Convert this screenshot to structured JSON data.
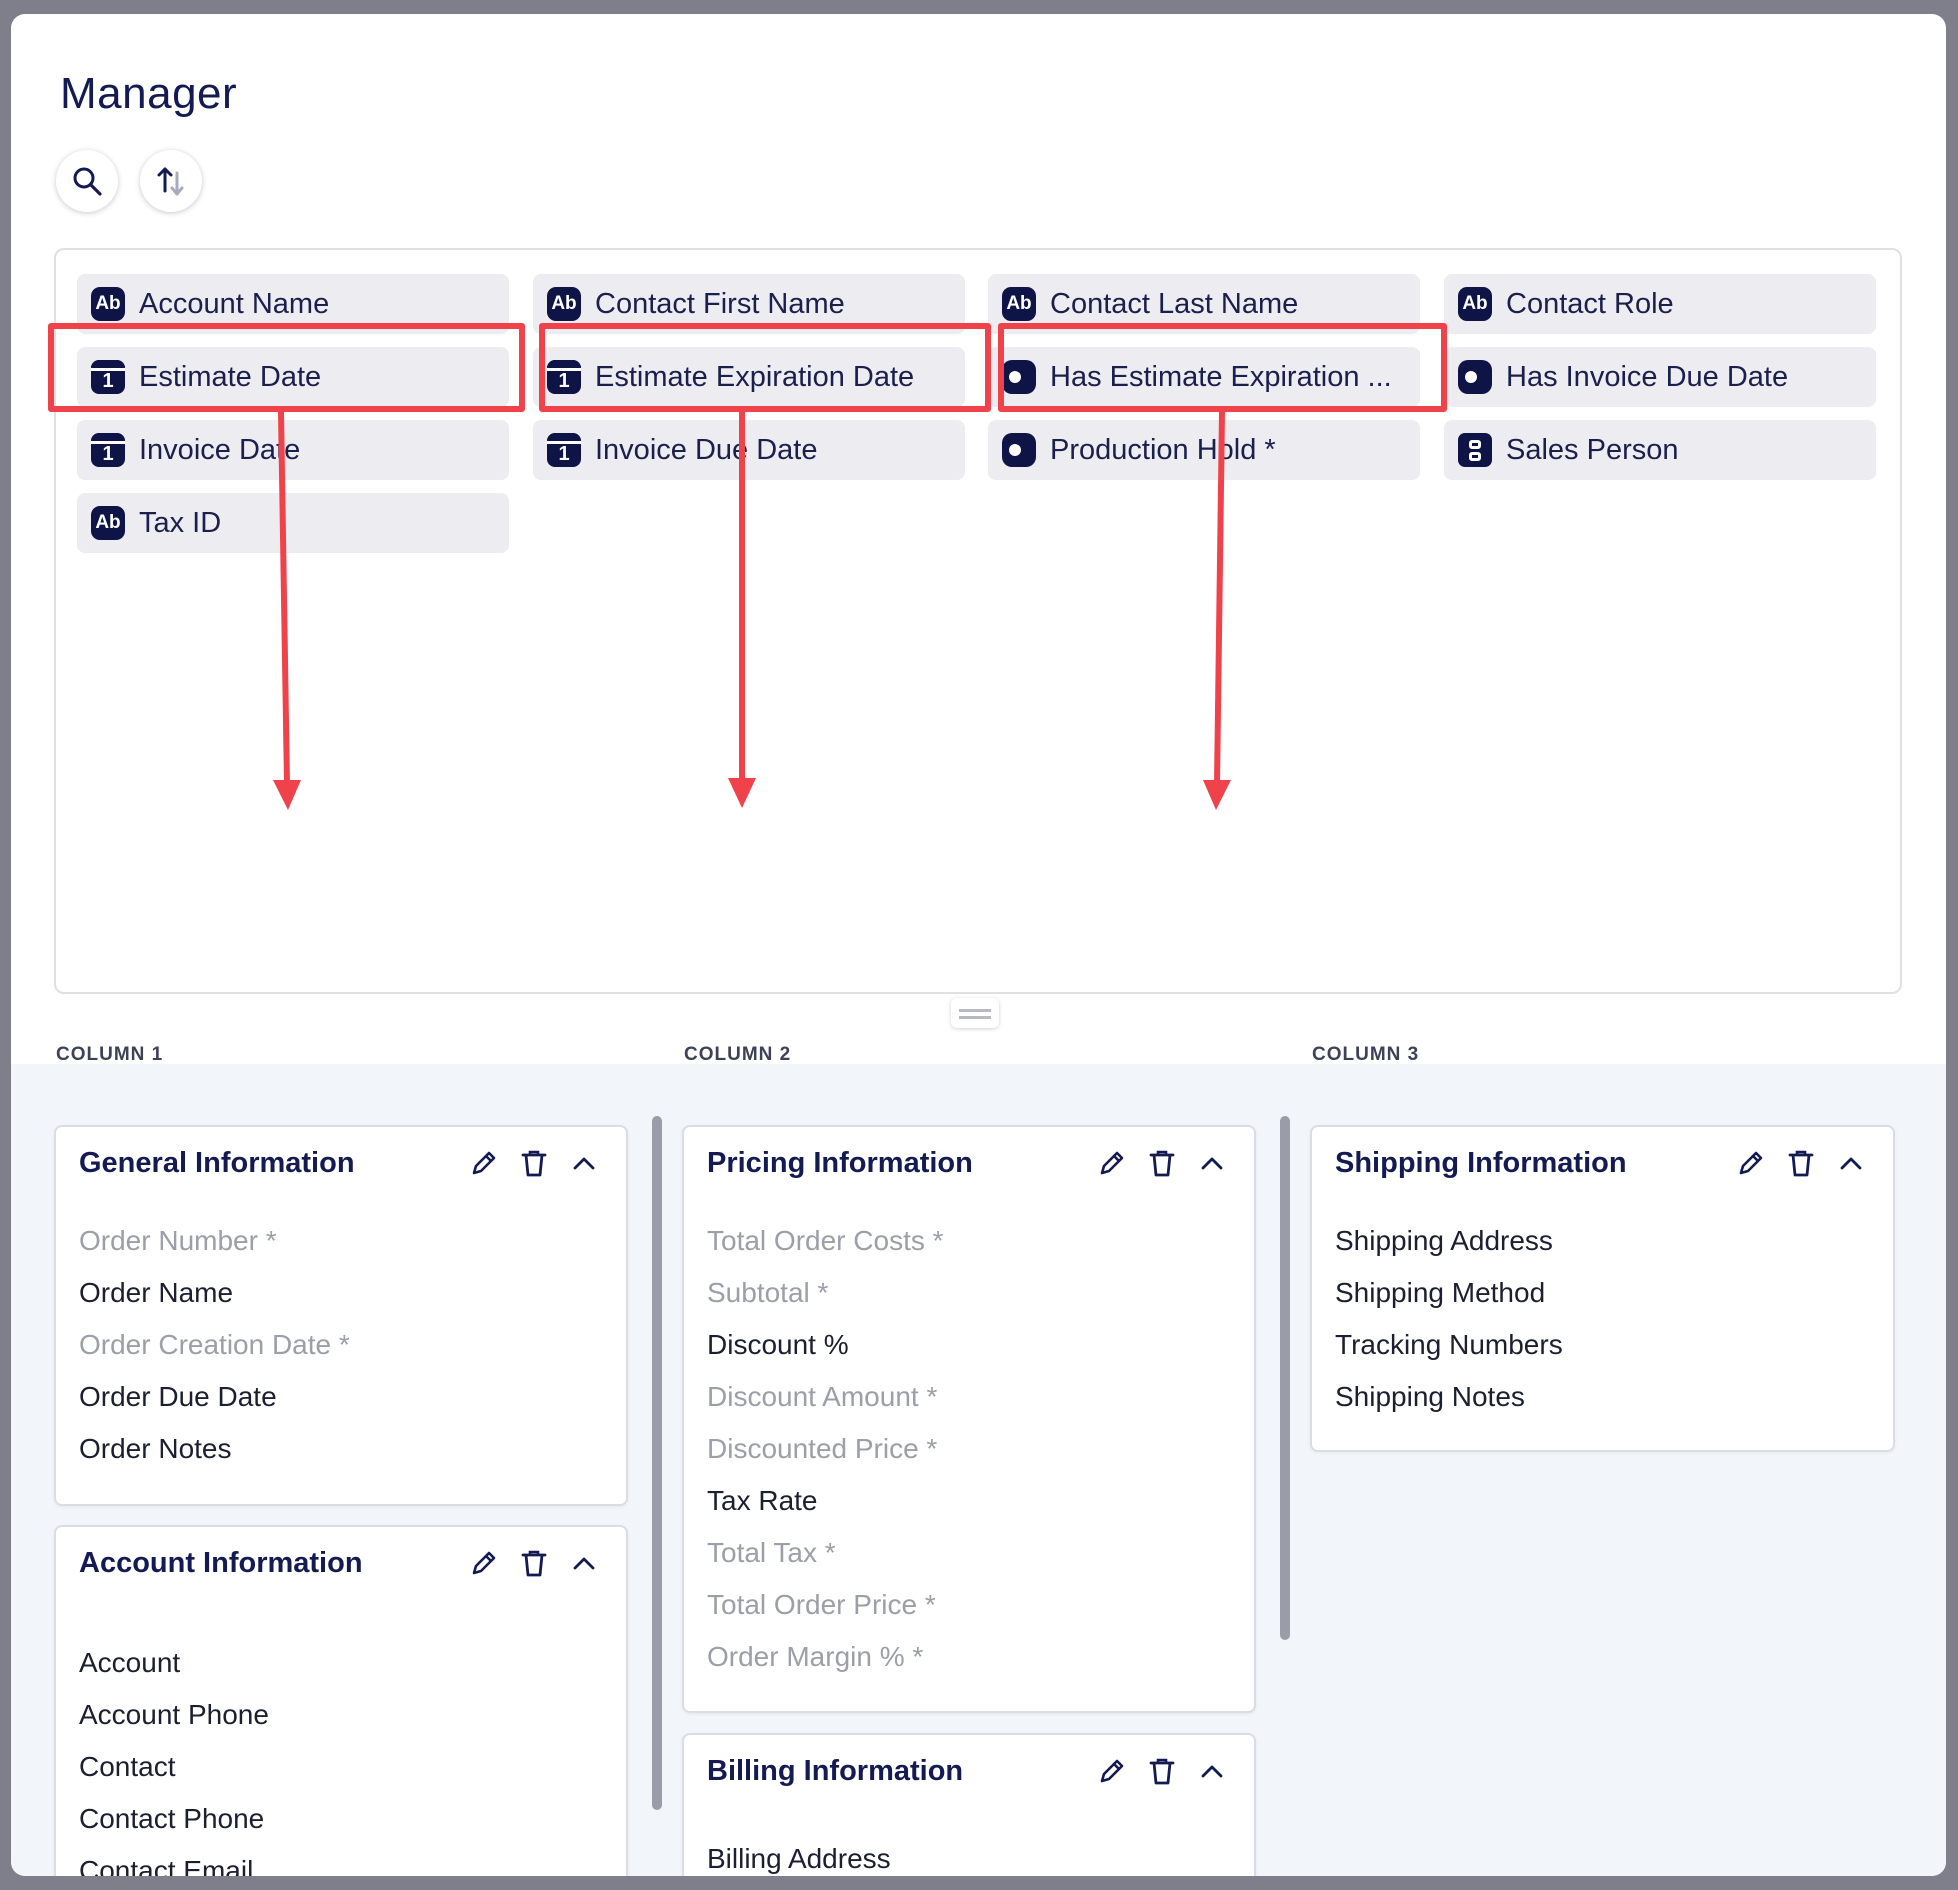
{
  "title": "Manager",
  "fields": [
    {
      "label": "Account Name",
      "type": "text",
      "icon": "text-type-icon"
    },
    {
      "label": "Contact First Name",
      "type": "text",
      "icon": "text-type-icon"
    },
    {
      "label": "Contact Last Name",
      "type": "text",
      "icon": "text-type-icon"
    },
    {
      "label": "Contact Role",
      "type": "text",
      "icon": "text-type-icon"
    },
    {
      "label": "Estimate Date",
      "type": "date",
      "icon": "calendar-icon"
    },
    {
      "label": "Estimate Expiration Date",
      "type": "date",
      "icon": "calendar-icon"
    },
    {
      "label": "Has Estimate Expiration ...",
      "type": "toggle",
      "icon": "toggle-icon"
    },
    {
      "label": "Has Invoice Due Date",
      "type": "toggle",
      "icon": "toggle-icon"
    },
    {
      "label": "Invoice Date",
      "type": "date",
      "icon": "calendar-icon"
    },
    {
      "label": "Invoice Due Date",
      "type": "date",
      "icon": "calendar-icon"
    },
    {
      "label": "Production Hold *",
      "type": "toggle",
      "icon": "toggle-icon"
    },
    {
      "label": "Sales Person",
      "type": "person",
      "icon": "person-icon"
    },
    {
      "label": "Tax ID",
      "type": "text",
      "icon": "text-type-icon"
    }
  ],
  "icon_text": {
    "text": "Ab",
    "date": "1"
  },
  "columns": [
    "COLUMN 1",
    "COLUMN 2",
    "COLUMN 3"
  ],
  "sections": [
    {
      "title": "General Information",
      "items": [
        {
          "label": "Order Number *",
          "dim": true
        },
        {
          "label": "Order Name",
          "dim": false
        },
        {
          "label": "Order Creation Date *",
          "dim": true
        },
        {
          "label": "Order Due Date",
          "dim": false
        },
        {
          "label": "Order Notes",
          "dim": false
        }
      ]
    },
    {
      "title": "Account Information",
      "items": [
        {
          "label": "Account",
          "dim": false
        },
        {
          "label": "Account Phone",
          "dim": false
        },
        {
          "label": "Contact",
          "dim": false
        },
        {
          "label": "Contact Phone",
          "dim": false
        },
        {
          "label": "Contact Email",
          "dim": false
        }
      ]
    },
    {
      "title": "Pricing Information",
      "items": [
        {
          "label": "Total Order Costs *",
          "dim": true
        },
        {
          "label": "Subtotal *",
          "dim": true
        },
        {
          "label": "Discount %",
          "dim": false
        },
        {
          "label": "Discount Amount *",
          "dim": true
        },
        {
          "label": "Discounted Price *",
          "dim": true
        },
        {
          "label": "Tax Rate",
          "dim": false
        },
        {
          "label": "Total Tax *",
          "dim": true
        },
        {
          "label": "Total Order Price *",
          "dim": true
        },
        {
          "label": "Order Margin % *",
          "dim": true
        }
      ]
    },
    {
      "title": "Billing Information",
      "items": [
        {
          "label": "Billing Address",
          "dim": false
        }
      ]
    },
    {
      "title": "Shipping Information",
      "items": [
        {
          "label": "Shipping Address",
          "dim": false
        },
        {
          "label": "Shipping Method",
          "dim": false
        },
        {
          "label": "Tracking Numbers",
          "dim": false
        },
        {
          "label": "Shipping Notes",
          "dim": false
        }
      ]
    }
  ],
  "colors": {
    "navy": "#141a52",
    "highlight": "#f0424a",
    "chip_bg": "#ececf1",
    "dim_text": "#9c9ea8"
  }
}
